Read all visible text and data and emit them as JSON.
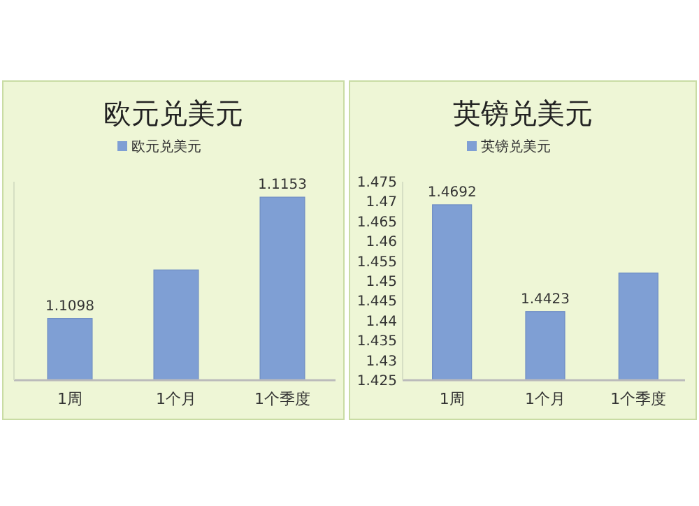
{
  "chart_data": [
    {
      "type": "bar",
      "title": "欧元兑美元",
      "categories": [
        "1周",
        "1个月",
        "1个季度"
      ],
      "legend": "top",
      "tick_labels": "x",
      "ylim": [
        1.107,
        1.116
      ],
      "series": [
        {
          "name": "欧元兑美元",
          "color": "#7f9fd4",
          "values": [
            1.1098,
            1.112,
            1.1153
          ],
          "value_labels": [
            "1.1098",
            null,
            "1.1153"
          ]
        }
      ]
    },
    {
      "type": "bar",
      "title": "英镑兑美元",
      "categories": [
        "1周",
        "1个月",
        "1个季度"
      ],
      "legend": "top",
      "ylim": [
        1.425,
        1.475
      ],
      "yticks": [
        1.425,
        1.43,
        1.435,
        1.44,
        1.445,
        1.45,
        1.455,
        1.46,
        1.465,
        1.47,
        1.475
      ],
      "series": [
        {
          "name": "英镑兑美元",
          "color": "#7f9fd4",
          "values": [
            1.4692,
            1.4423,
            1.452
          ],
          "value_labels": [
            "1.4692",
            "1.4423",
            null
          ]
        }
      ]
    }
  ]
}
